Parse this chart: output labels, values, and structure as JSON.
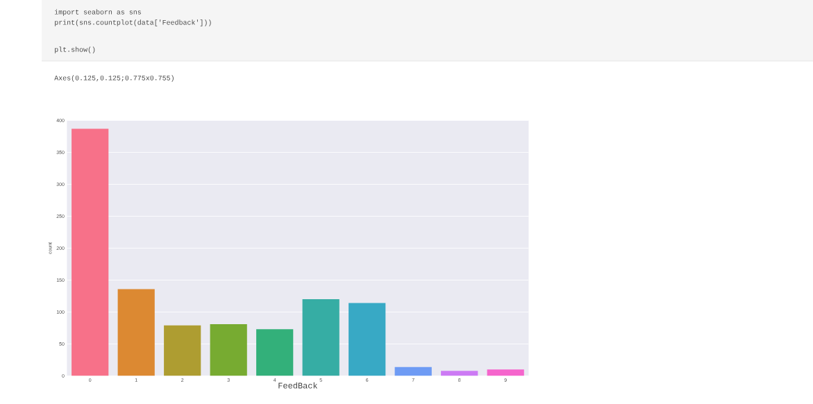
{
  "chart_data": {
    "type": "bar",
    "annotations": [
      "import seaborn as sns",
      "print(sns.countplot(data['Feedback']))",
      "plt.show()",
      "Axes(0.125,0.125;0.775x0.755)"
    ],
    "xlabel": "FeedBack",
    "ylabel": "count",
    "categories": [
      "0",
      "1",
      "2",
      "3",
      "4",
      "5",
      "6",
      "7",
      "8",
      "9"
    ],
    "values": [
      387,
      136,
      79,
      81,
      73,
      120,
      114,
      14,
      8,
      10
    ],
    "colors": [
      "#f77189",
      "#dc8932",
      "#ae9d31",
      "#77ab31",
      "#33b07a",
      "#36ada4",
      "#38a9c5",
      "#6e9bf4",
      "#cc7af4",
      "#f565cc"
    ],
    "ylim": [
      0,
      400
    ],
    "yticks": [
      0,
      50,
      100,
      150,
      200,
      250,
      300,
      350,
      400
    ],
    "grid": "y"
  }
}
